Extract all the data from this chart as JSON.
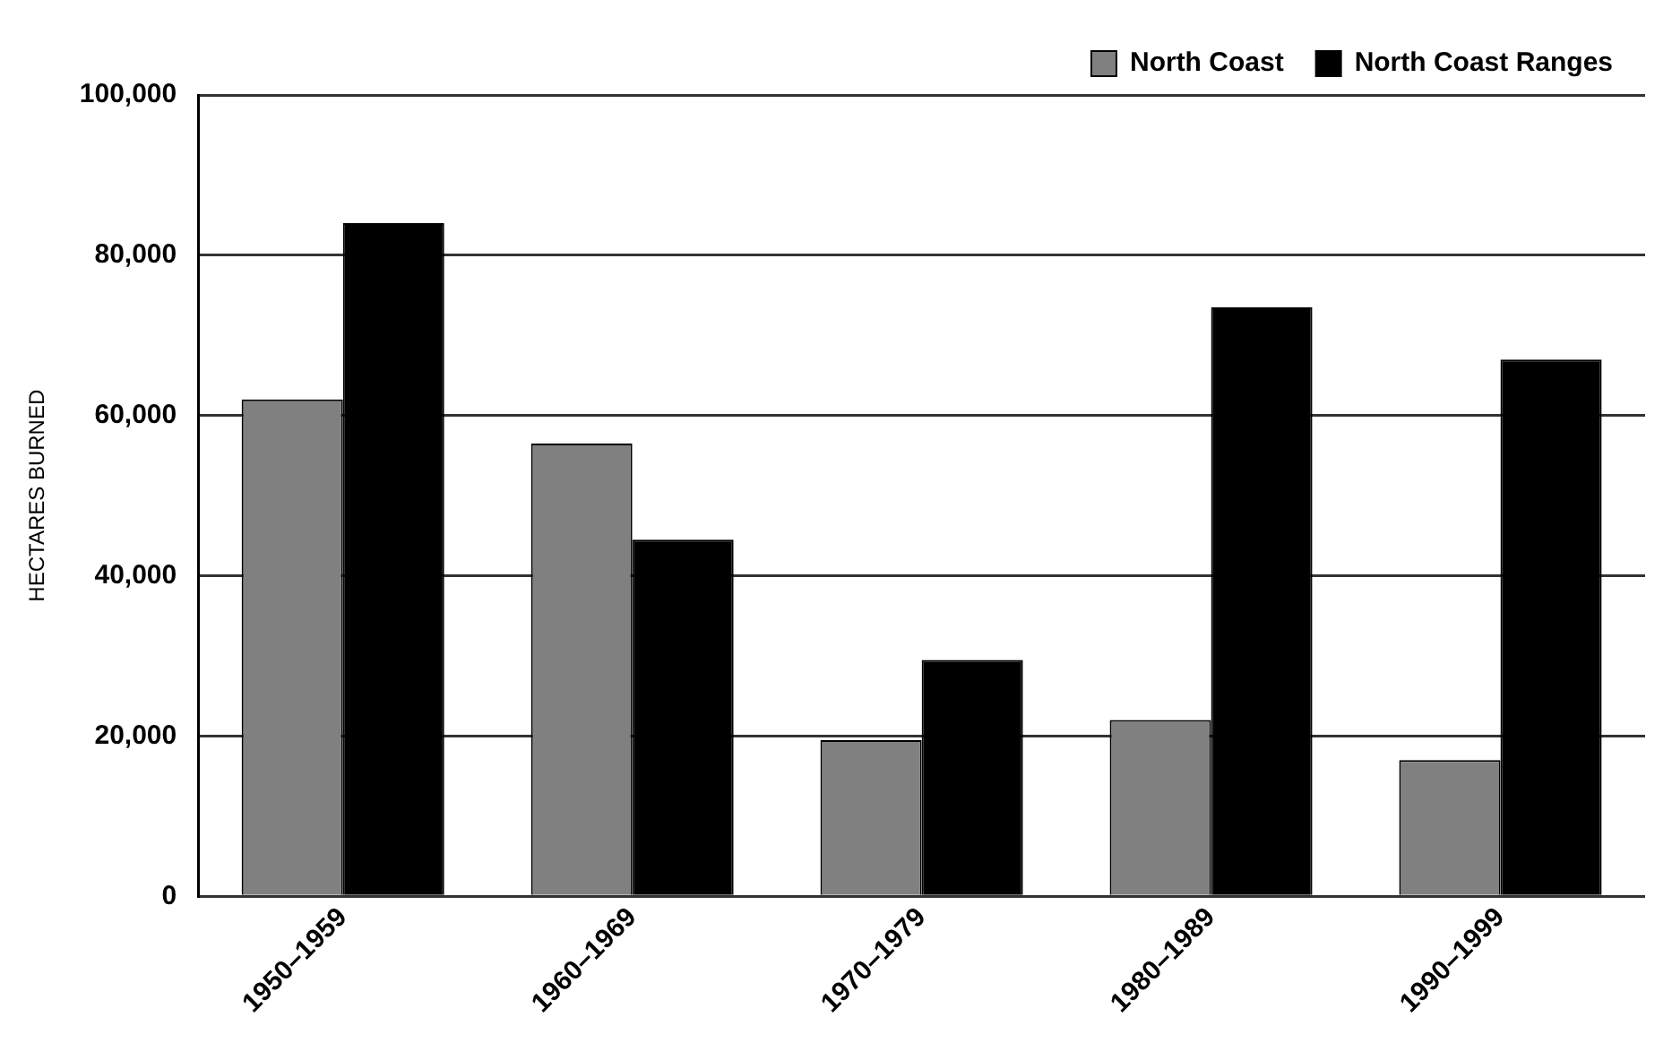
{
  "chart_data": {
    "type": "bar",
    "ylabel": "HECTARES BURNED",
    "categories": [
      "1950–1959",
      "1960–1969",
      "1970–1979",
      "1980–1989",
      "1990–1999"
    ],
    "series": [
      {
        "name": "North Coast",
        "color": "#808080",
        "values": [
          62000,
          56500,
          19500,
          22000,
          17000
        ]
      },
      {
        "name": "North Coast Ranges",
        "color": "#000000",
        "values": [
          84000,
          44500,
          29500,
          73500,
          67000
        ]
      }
    ],
    "ylim": [
      0,
      100000
    ],
    "yticks": [
      0,
      {
        "value": 20000,
        "label": "20,000"
      },
      {
        "value": 40000,
        "label": "40,000"
      },
      {
        "value": 60000,
        "label": "60,000"
      },
      {
        "value": 80000,
        "label": "80,000"
      },
      {
        "value": 100000,
        "label": "100,000"
      }
    ],
    "grid": "y",
    "legend": "top right"
  }
}
